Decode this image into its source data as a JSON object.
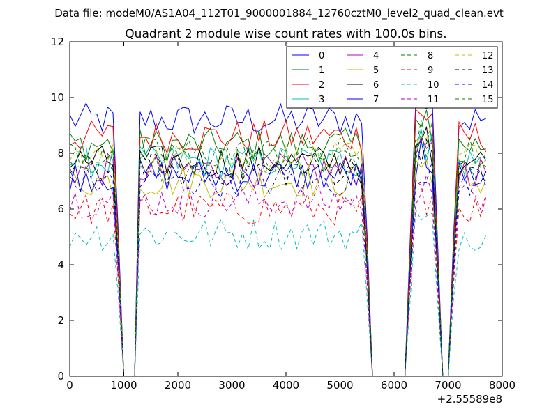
{
  "suptitle": "Data file: modeM0/AS1A04_112T01_9000001884_12760cztM0_level2_quad_clean.evt",
  "chart_data": {
    "type": "line",
    "title": "Quadrant 2 module wise count rates with 100.0s bins.",
    "xlabel": "",
    "ylabel": "",
    "xlim": [
      0,
      8000
    ],
    "ylim": [
      0,
      12
    ],
    "xticks": [
      0,
      1000,
      2000,
      3000,
      4000,
      5000,
      6000,
      7000,
      8000
    ],
    "yticks": [
      0,
      2,
      4,
      6,
      8,
      10,
      12
    ],
    "x_offset_label": "+2.55589e8",
    "grid": false,
    "legend": {
      "placement": "top-right",
      "columns": 4
    },
    "series": [
      {
        "name": "0",
        "color": "#0000ff",
        "dash": false,
        "base": 9.2
      },
      {
        "name": "1",
        "color": "#008000",
        "dash": false,
        "base": 8.3
      },
      {
        "name": "2",
        "color": "#ff0000",
        "dash": false,
        "base": 8.6
      },
      {
        "name": "3",
        "color": "#00bfbf",
        "dash": false,
        "base": 7.7
      },
      {
        "name": "4",
        "color": "#bf00bf",
        "dash": false,
        "base": 7.4
      },
      {
        "name": "5",
        "color": "#bfbf00",
        "dash": false,
        "base": 7.0
      },
      {
        "name": "6",
        "color": "#000000",
        "dash": false,
        "base": 7.7
      },
      {
        "name": "7",
        "color": "#0000ff",
        "dash": false,
        "base": 7.2
      },
      {
        "name": "8",
        "color": "#008000",
        "dash": true,
        "base": 7.6
      },
      {
        "name": "9",
        "color": "#ff0000",
        "dash": true,
        "base": 6.0
      },
      {
        "name": "10",
        "color": "#00bfbf",
        "dash": true,
        "base": 5.1
      },
      {
        "name": "11",
        "color": "#bf00bf",
        "dash": true,
        "base": 6.3
      },
      {
        "name": "12",
        "color": "#bfbf00",
        "dash": true,
        "base": 7.8
      },
      {
        "name": "13",
        "color": "#000000",
        "dash": true,
        "base": 7.4
      },
      {
        "name": "14",
        "color": "#0000ff",
        "dash": true,
        "base": 7.0
      },
      {
        "name": "15",
        "color": "#008000",
        "dash": true,
        "base": 8.0
      }
    ]
  }
}
